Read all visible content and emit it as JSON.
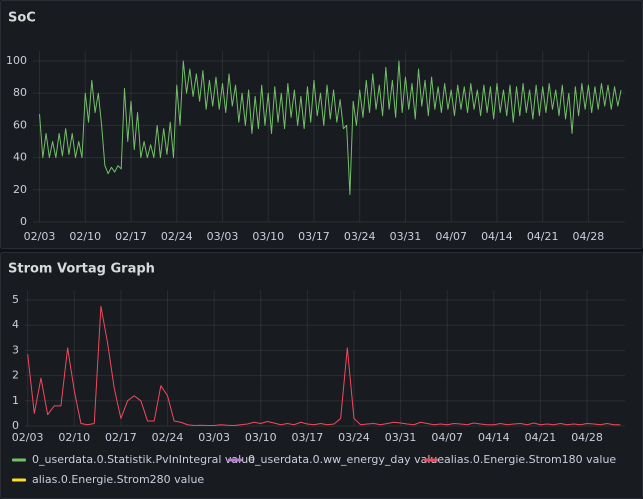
{
  "chart_data": [
    {
      "type": "line",
      "title": "SoC",
      "x": [
        0,
        0.5,
        1,
        1.5,
        2,
        2.5,
        3,
        3.5,
        4,
        4.5,
        5,
        5.5,
        6,
        6.5,
        7,
        7.5,
        8,
        8.5,
        9,
        9.5,
        10,
        10.5,
        11,
        11.5,
        12,
        12.5,
        13,
        13.5,
        14,
        14.5,
        15,
        15.5,
        16,
        16.5,
        17,
        17.5,
        18,
        18.5,
        19,
        19.5,
        20,
        20.5,
        21,
        21.5,
        22,
        22.5,
        23,
        23.5,
        24,
        24.5,
        25,
        25.5,
        26,
        26.5,
        27,
        27.5,
        28,
        28.5,
        29,
        29.5,
        30,
        30.5,
        31,
        31.5,
        32,
        32.5,
        33,
        33.5,
        34,
        34.5,
        35,
        35.5,
        36,
        36.5,
        37,
        37.5,
        38,
        38.5,
        39,
        39.5,
        40,
        40.5,
        41,
        41.5,
        42,
        42.5,
        43,
        43.5,
        44,
        44.5,
        45,
        45.5,
        46,
        46.5,
        47,
        47.5,
        48,
        48.5,
        49,
        49.5,
        50,
        50.5,
        51,
        51.5,
        52,
        52.5,
        53,
        53.5,
        54,
        54.5,
        55,
        55.5,
        56,
        56.5,
        57,
        57.5,
        58,
        58.5,
        59,
        59.5,
        60,
        60.5,
        61,
        61.5,
        62,
        62.5,
        63,
        63.5,
        64,
        64.5,
        65,
        65.5,
        66,
        66.5,
        67,
        67.5,
        68,
        68.5,
        69,
        69.5,
        70,
        70.5,
        71,
        71.5,
        72,
        72.5,
        73,
        73.5,
        74,
        74.5,
        75,
        75.5,
        76,
        76.5,
        77,
        77.5,
        78,
        78.5,
        79,
        79.5,
        80,
        80.5,
        81,
        81.5,
        82,
        82.5,
        83,
        83.5,
        84,
        84.5,
        85,
        85.5,
        86,
        86.5,
        87,
        87.5,
        88,
        88.5,
        89
      ],
      "series": [
        {
          "color": "#73bf69",
          "values": [
            67,
            40,
            55,
            40,
            50,
            40,
            55,
            41,
            58,
            42,
            55,
            40,
            50,
            40,
            80,
            62,
            88,
            68,
            80,
            60,
            35,
            30,
            34,
            31,
            35,
            33,
            83,
            50,
            75,
            45,
            68,
            40,
            50,
            40,
            48,
            40,
            60,
            40,
            58,
            42,
            62,
            40,
            85,
            60,
            100,
            80,
            95,
            78,
            92,
            75,
            94,
            70,
            88,
            72,
            90,
            70,
            86,
            68,
            92,
            72,
            85,
            62,
            80,
            60,
            82,
            55,
            78,
            58,
            85,
            60,
            80,
            55,
            84,
            62,
            80,
            58,
            86,
            65,
            82,
            60,
            78,
            58,
            84,
            62,
            88,
            66,
            80,
            60,
            85,
            64,
            82,
            62,
            76,
            58,
            60,
            17,
            75,
            60,
            82,
            65,
            88,
            68,
            92,
            70,
            85,
            66,
            96,
            70,
            88,
            65,
            100,
            68,
            90,
            70,
            86,
            64,
            95,
            72,
            88,
            66,
            90,
            70,
            84,
            68,
            86,
            70,
            82,
            66,
            85,
            70,
            84,
            68,
            86,
            70,
            82,
            66,
            85,
            68,
            84,
            64,
            86,
            68,
            82,
            66,
            85,
            62,
            84,
            66,
            86,
            68,
            82,
            64,
            85,
            66,
            84,
            68,
            86,
            70,
            82,
            66,
            85,
            64,
            80,
            55,
            84,
            66,
            86,
            70,
            85,
            68,
            84,
            70,
            86,
            72,
            85,
            70,
            84,
            72,
            82
          ]
        }
      ],
      "xlim": [
        -1,
        89.6
      ],
      "xticks": [
        {
          "value": 0,
          "label": "02/03"
        },
        {
          "value": 7,
          "label": "02/10"
        },
        {
          "value": 14,
          "label": "02/17"
        },
        {
          "value": 21,
          "label": "02/24"
        },
        {
          "value": 28,
          "label": "03/03"
        },
        {
          "value": 35,
          "label": "03/10"
        },
        {
          "value": 42,
          "label": "03/17"
        },
        {
          "value": 49,
          "label": "03/24"
        },
        {
          "value": 56,
          "label": "03/31"
        },
        {
          "value": 63,
          "label": "04/07"
        },
        {
          "value": 70,
          "label": "04/14"
        },
        {
          "value": 77,
          "label": "04/21"
        },
        {
          "value": 84,
          "label": "04/28"
        }
      ],
      "ylim": [
        0,
        100
      ],
      "yticks": [
        0,
        20,
        40,
        60,
        80,
        100
      ],
      "grid": true
    },
    {
      "type": "line",
      "title": "Strom Vortag Graph",
      "x": [
        0,
        1,
        2,
        3,
        4,
        5,
        6,
        7,
        8,
        9,
        10,
        11,
        12,
        13,
        14,
        15,
        16,
        17,
        18,
        19,
        20,
        21,
        22,
        23,
        24,
        25,
        26,
        27,
        28,
        29,
        30,
        31,
        32,
        33,
        34,
        35,
        36,
        37,
        38,
        39,
        40,
        41,
        42,
        43,
        44,
        45,
        46,
        47,
        48,
        49,
        50,
        51,
        52,
        53,
        54,
        55,
        56,
        57,
        58,
        59,
        60,
        61,
        62,
        63,
        64,
        65,
        66,
        67,
        68,
        69,
        70,
        71,
        72,
        73,
        74,
        75,
        76,
        77,
        78,
        79,
        80,
        81,
        82,
        83,
        84,
        85,
        86,
        87,
        88,
        89
      ],
      "series": [
        {
          "name": "0_userdata.0.Statistik.PvInIntegral value",
          "color": "#73bf69"
        },
        {
          "name": "0_userdata.0.ww_energy_day value",
          "color": "#b877d9"
        },
        {
          "name": "alias.0.Energie.Strom180 value",
          "color": "#f2495c",
          "values": [
            2.85,
            0.5,
            1.9,
            0.45,
            0.8,
            0.8,
            3.1,
            1.4,
            0.1,
            0.05,
            0.1,
            4.75,
            3.3,
            1.5,
            0.3,
            1.0,
            1.2,
            1.0,
            0.2,
            0.2,
            1.6,
            1.2,
            0.2,
            0.15,
            0.05,
            0.02,
            0.03,
            0.02,
            0.02,
            0.05,
            0.03,
            0.02,
            0.05,
            0.08,
            0.15,
            0.1,
            0.18,
            0.12,
            0.05,
            0.1,
            0.05,
            0.15,
            0.08,
            0.05,
            0.1,
            0.05,
            0.08,
            0.3,
            3.1,
            0.3,
            0.05,
            0.08,
            0.1,
            0.05,
            0.1,
            0.15,
            0.12,
            0.08,
            0.05,
            0.15,
            0.1,
            0.05,
            0.08,
            0.05,
            0.1,
            0.08,
            0.05,
            0.12,
            0.08,
            0.05,
            0.05,
            0.1,
            0.05,
            0.08,
            0.1,
            0.05,
            0.12,
            0.05,
            0.08,
            0.05,
            0.1,
            0.05,
            0.08,
            0.05,
            0.1,
            0.08,
            0.05,
            0.1,
            0.05,
            0.05
          ]
        },
        {
          "name": "alias.0.Energie.Strom280 value",
          "color": "#fade2a"
        }
      ],
      "xlim": [
        -0.4,
        89.7
      ],
      "xticks": [
        {
          "value": 0,
          "label": "02/03"
        },
        {
          "value": 7,
          "label": "02/10"
        },
        {
          "value": 14,
          "label": "02/17"
        },
        {
          "value": 21,
          "label": "02/24"
        },
        {
          "value": 28,
          "label": "03/03"
        },
        {
          "value": 35,
          "label": "03/10"
        },
        {
          "value": 42,
          "label": "03/17"
        },
        {
          "value": 49,
          "label": "03/24"
        },
        {
          "value": 56,
          "label": "03/31"
        },
        {
          "value": 63,
          "label": "04/07"
        },
        {
          "value": 70,
          "label": "04/14"
        },
        {
          "value": 77,
          "label": "04/21"
        },
        {
          "value": 84,
          "label": "04/28"
        }
      ],
      "ylim": [
        0,
        5
      ],
      "yticks": [
        0,
        1,
        2,
        3,
        4,
        5
      ],
      "grid": true
    }
  ]
}
